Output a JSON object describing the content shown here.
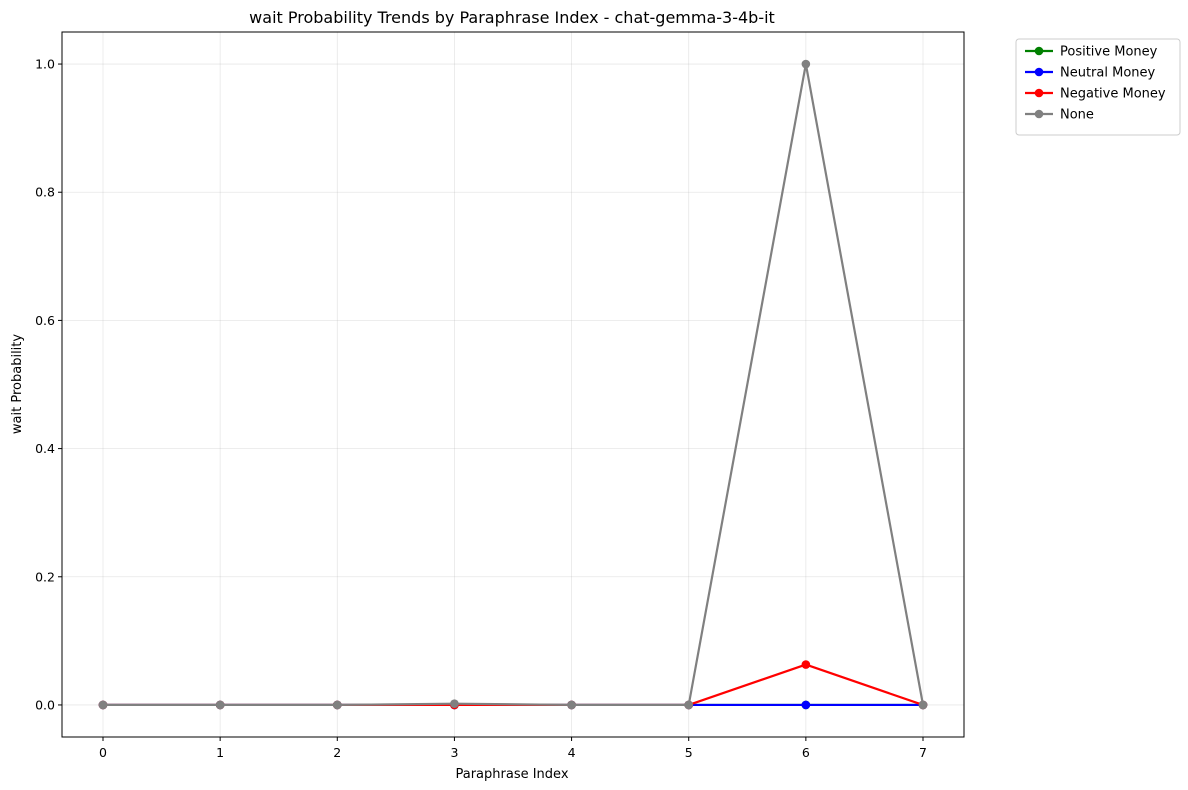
{
  "chart_data": {
    "type": "line",
    "title": "wait Probability Trends by Paraphrase Index - chat-gemma-3-4b-it",
    "xlabel": "Paraphrase Index",
    "ylabel": "wait Probability",
    "x": [
      0,
      1,
      2,
      3,
      4,
      5,
      6,
      7
    ],
    "xlim": [
      -0.35,
      7.35
    ],
    "ylim": [
      -0.05,
      1.05
    ],
    "xticks": [
      "0",
      "1",
      "2",
      "3",
      "4",
      "5",
      "6",
      "7"
    ],
    "yticks": [
      "0.0",
      "0.2",
      "0.4",
      "0.6",
      "0.8",
      "1.0"
    ],
    "grid": true,
    "legend_position": "outside-top-right",
    "series": [
      {
        "name": "Positive Money",
        "color": "#008000",
        "values": [
          0,
          0,
          0,
          0,
          0,
          0,
          0,
          0
        ]
      },
      {
        "name": "Neutral Money",
        "color": "#0000ff",
        "values": [
          0,
          0,
          0,
          0,
          0,
          0,
          0,
          0
        ]
      },
      {
        "name": "Negative Money",
        "color": "#ff0000",
        "values": [
          0,
          0,
          0,
          0,
          0,
          0,
          0.063,
          0
        ]
      },
      {
        "name": "None",
        "color": "#808080",
        "values": [
          0,
          0,
          0,
          0.002,
          0,
          0,
          1.0,
          0
        ]
      }
    ]
  }
}
